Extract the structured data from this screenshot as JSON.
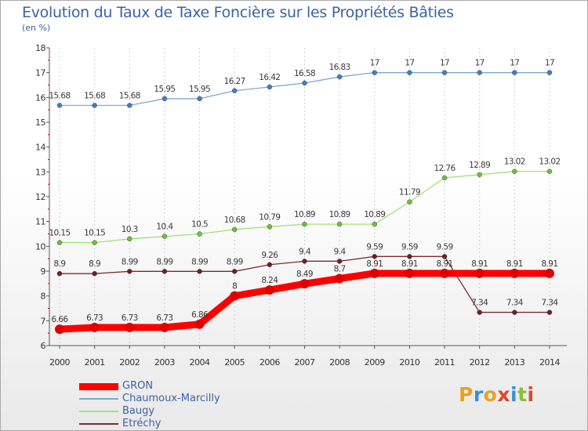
{
  "title": "Evolution du Taux de Taxe Foncière sur les Propriétés Bâties",
  "unit": "(en %)",
  "brand": {
    "text": "Proxiti",
    "colors": [
      "#e8a21c",
      "#3b8fd6",
      "#e8a21c",
      "#e2462b",
      "#3b8fd6",
      "#8cbf3a",
      "#e2462b"
    ]
  },
  "chart_data": {
    "type": "line",
    "x": [
      "2000",
      "2001",
      "2002",
      "2003",
      "2004",
      "2005",
      "2006",
      "2007",
      "2008",
      "2009",
      "2010",
      "2011",
      "2012",
      "2013",
      "2014"
    ],
    "ylim": [
      6,
      18
    ],
    "yticks": [
      6,
      7,
      8,
      9,
      10,
      11,
      12,
      13,
      14,
      15,
      16,
      17,
      18
    ],
    "ytick_labels": [
      "6",
      "7",
      "8",
      "9",
      "10",
      "11",
      "12",
      "13",
      "14",
      "15",
      "16",
      "17",
      "18"
    ],
    "grid": "vertical dashed",
    "legend_position": "bottom-left",
    "series": [
      {
        "name": "GRON",
        "color": "#ff0000",
        "point_color": "#e00000",
        "width": 9,
        "radius": 6,
        "values": [
          6.66,
          6.73,
          6.73,
          6.73,
          6.86,
          8,
          8.24,
          8.49,
          8.7,
          8.91,
          8.91,
          8.91,
          8.91,
          8.91,
          8.91
        ],
        "labels": [
          "6.66",
          "6.73",
          "6.73",
          "6.73",
          "6.86",
          "8",
          "8.24",
          "8.49",
          "8.7",
          "8.91",
          "8.91",
          "8.91",
          "8.91",
          "8.91",
          "8.91"
        ]
      },
      {
        "name": "Chaumoux-Marcilly",
        "color": "#7fa8d2",
        "point_color": "#3f7fc4",
        "width": 1.3,
        "radius": 3,
        "values": [
          15.68,
          15.68,
          15.68,
          15.95,
          15.95,
          16.27,
          16.42,
          16.58,
          16.83,
          17,
          17,
          17,
          17,
          17,
          17
        ],
        "labels": [
          "15.68",
          "15.68",
          "15.68",
          "15.95",
          "15.95",
          "16.27",
          "16.42",
          "16.58",
          "16.83",
          "17",
          "17",
          "17",
          "17",
          "17",
          "17"
        ]
      },
      {
        "name": "Baugy",
        "color": "#a6e07a",
        "point_color": "#6cc23a",
        "width": 1.3,
        "radius": 3,
        "values": [
          10.15,
          10.15,
          10.3,
          10.4,
          10.5,
          10.68,
          10.79,
          10.89,
          10.89,
          10.89,
          11.79,
          12.76,
          12.89,
          13.02,
          13.02
        ],
        "labels": [
          "10.15",
          "10.15",
          "10.3",
          "10.4",
          "10.5",
          "10.68",
          "10.79",
          "10.89",
          "10.89",
          "10.89",
          "11.79",
          "12.76",
          "12.89",
          "13.02",
          "13.02"
        ]
      },
      {
        "name": "Etréchy",
        "color": "#7a2a33",
        "point_color": "#6e1f28",
        "width": 1.3,
        "radius": 3,
        "values": [
          8.9,
          8.9,
          8.99,
          8.99,
          8.99,
          8.99,
          9.26,
          9.4,
          9.4,
          9.59,
          9.59,
          9.59,
          7.34,
          7.34,
          7.34
        ],
        "labels": [
          "8.9",
          "8.9",
          "8.99",
          "8.99",
          "8.99",
          "8.99",
          "9.26",
          "9.4",
          "9.4",
          "9.59",
          "9.59",
          "9.59",
          "7.34",
          "7.34",
          "7.34"
        ]
      }
    ]
  }
}
